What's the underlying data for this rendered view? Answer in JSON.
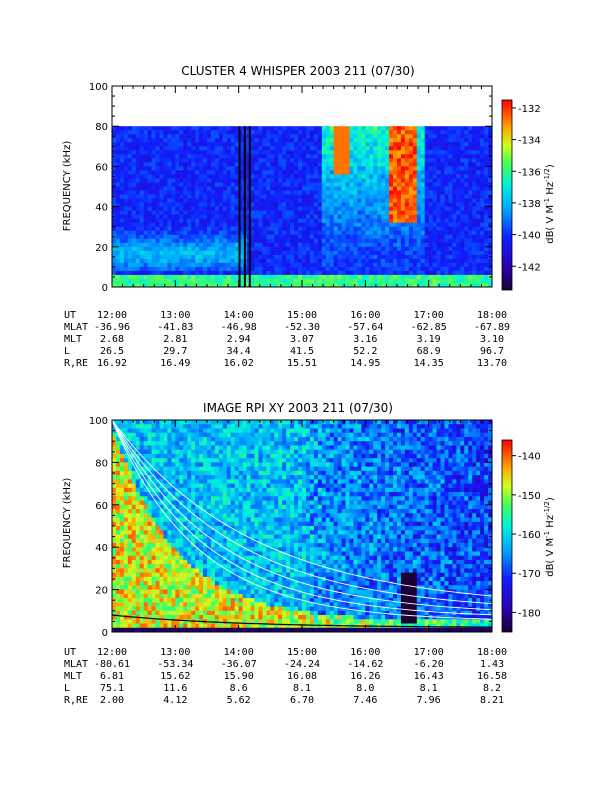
{
  "chart_data": [
    {
      "type": "heatmap",
      "title": "CLUSTER 4 WHISPER 2003 211 (07/30)",
      "ylabel": "FREQUENCY (kHz)",
      "ylim": [
        0,
        100
      ],
      "y_ticks": [
        "0",
        "20",
        "40",
        "60",
        "80",
        "100"
      ],
      "x_ticks": [
        "12:00",
        "13:00",
        "14:00",
        "15:00",
        "16:00",
        "17:00",
        "18:00"
      ],
      "colorbar": {
        "label": "dB( V M⁻¹ Hz⁻¹ᐟ²)",
        "label_main": "dB( V M",
        "label_sup1": "-1",
        "label_mid": " Hz",
        "label_sup2": "-1/2",
        "label_end": ")",
        "range": [
          -143.5,
          -131.5
        ],
        "ticks": [
          "-132",
          "-134",
          "-136",
          "-138",
          "-140",
          "-142"
        ]
      },
      "data_upper_cutoff_khz": 80,
      "ephemeris": [
        {
          "label": "UT",
          "values": [
            "12:00",
            "13:00",
            "14:00",
            "15:00",
            "16:00",
            "17:00",
            "18:00"
          ]
        },
        {
          "label": "MLAT",
          "values": [
            "-36.96",
            "-41.83",
            "-46.98",
            "-52.30",
            "-57.64",
            "-62.85",
            "-67.89"
          ]
        },
        {
          "label": "MLT",
          "values": [
            "2.68",
            "2.81",
            "2.94",
            "3.07",
            "3.16",
            "3.19",
            "3.10"
          ]
        },
        {
          "label": "L",
          "values": [
            "26.5",
            "29.7",
            "34.4",
            "41.5",
            "52.2",
            "68.9",
            "96.7"
          ]
        },
        {
          "label": "R,RE",
          "values": [
            "16.92",
            "16.49",
            "16.02",
            "15.51",
            "14.95",
            "14.35",
            "13.70"
          ]
        }
      ]
    },
    {
      "type": "heatmap",
      "title": "IMAGE RPI XY 2003 211 (07/30)",
      "ylabel": "FREQUENCY (kHz)",
      "ylim": [
        0,
        100
      ],
      "y_ticks": [
        "0",
        "20",
        "40",
        "60",
        "80",
        "100"
      ],
      "x_ticks": [
        "12:00",
        "13:00",
        "14:00",
        "15:00",
        "16:00",
        "17:00",
        "18:00"
      ],
      "colorbar": {
        "label_main": "dB( V M",
        "label_sup1": "-1",
        "label_mid": " Hz",
        "label_sup2": "-1/2",
        "label_end": ")",
        "range": [
          -185,
          -136
        ],
        "ticks": [
          "-140",
          "-150",
          "-160",
          "-170",
          "-180"
        ]
      },
      "ephemeris": [
        {
          "label": "UT",
          "values": [
            "12:00",
            "13:00",
            "14:00",
            "15:00",
            "16:00",
            "17:00",
            "18:00"
          ]
        },
        {
          "label": "MLAT",
          "values": [
            "-80.61",
            "-53.34",
            "-36.07",
            "-24.24",
            "-14.62",
            "-6.20",
            "1.43"
          ]
        },
        {
          "label": "MLT",
          "values": [
            "6.81",
            "15.62",
            "15.90",
            "16.08",
            "16.26",
            "16.43",
            "16.58"
          ]
        },
        {
          "label": "L",
          "values": [
            "75.1",
            "11.6",
            "8.6",
            "8.1",
            "8.0",
            "8.1",
            "8.2"
          ]
        },
        {
          "label": "R,RE",
          "values": [
            "2.00",
            "4.12",
            "5.62",
            "6.70",
            "7.46",
            "7.96",
            "8.21"
          ]
        }
      ]
    }
  ]
}
